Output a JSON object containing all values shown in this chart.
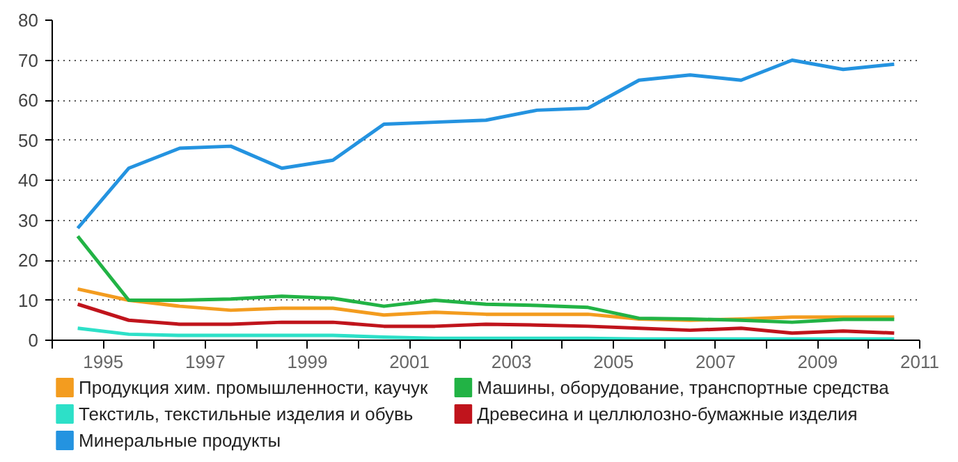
{
  "chart_data": {
    "type": "line",
    "x": [
      1994.5,
      1995.5,
      1996.5,
      1997.5,
      1998.5,
      1999.5,
      2000.5,
      2001.5,
      2002.5,
      2003.5,
      2004.5,
      2005.5,
      2006.5,
      2007.5,
      2008.5,
      2009.5,
      2010.5
    ],
    "series": [
      {
        "name": "Продукция хим. промышленности, каучук",
        "color": "#f39c1f",
        "values": [
          12.8,
          10,
          8.5,
          7.5,
          8,
          8,
          6.3,
          7,
          6.5,
          6.5,
          6.5,
          5.3,
          5,
          5.3,
          5.8,
          5.8,
          5.8
        ]
      },
      {
        "name": "Машины, оборудование, транспортные средства",
        "color": "#22b345",
        "values": [
          26,
          10,
          10,
          10.3,
          11,
          10.5,
          8.5,
          10,
          9,
          8.7,
          8.2,
          5.5,
          5.3,
          5,
          4.5,
          5.2,
          5.2
        ]
      },
      {
        "name": "Текстиль, текстильные изделия и обувь",
        "color": "#2de0c8",
        "values": [
          3,
          1.5,
          1.2,
          1.2,
          1.2,
          1.2,
          0.8,
          0.5,
          0.5,
          0.5,
          0.5,
          0.3,
          0.3,
          0.3,
          0.3,
          0.3,
          0.3
        ]
      },
      {
        "name": "Древесина и целлюлозно-бумажные изделия",
        "color": "#c0141c",
        "values": [
          9,
          5,
          4,
          4,
          4.5,
          4.5,
          3.5,
          3.5,
          4,
          3.8,
          3.5,
          3,
          2.5,
          3,
          1.8,
          2.3,
          1.8
        ]
      },
      {
        "name": "Минеральные продукты",
        "color": "#2493e0",
        "values": [
          28,
          43,
          48,
          48.5,
          43,
          45,
          54,
          54.5,
          55,
          57.5,
          58,
          65,
          66.3,
          65,
          70,
          67.7,
          69
        ]
      }
    ],
    "xlim": [
      1994,
      2011
    ],
    "xticks": [
      {
        "value": 1994,
        "label": null
      },
      1995,
      {
        "value": 1996,
        "label": null
      },
      1997,
      {
        "value": 1998,
        "label": null
      },
      1999,
      {
        "value": 2000,
        "label": null
      },
      2001,
      {
        "value": 2002,
        "label": null
      },
      2003,
      {
        "value": 2004,
        "label": null
      },
      2005,
      {
        "value": 2006,
        "label": null
      },
      2007,
      {
        "value": 2008,
        "label": null
      },
      2009,
      {
        "value": 2010,
        "label": null
      },
      2011
    ],
    "ylim": [
      0,
      80
    ],
    "yticks": [
      0,
      10,
      20,
      30,
      40,
      50,
      60,
      70,
      80
    ],
    "grid": "y",
    "legend": "bottom",
    "line_style": "solid",
    "marker": "none"
  }
}
